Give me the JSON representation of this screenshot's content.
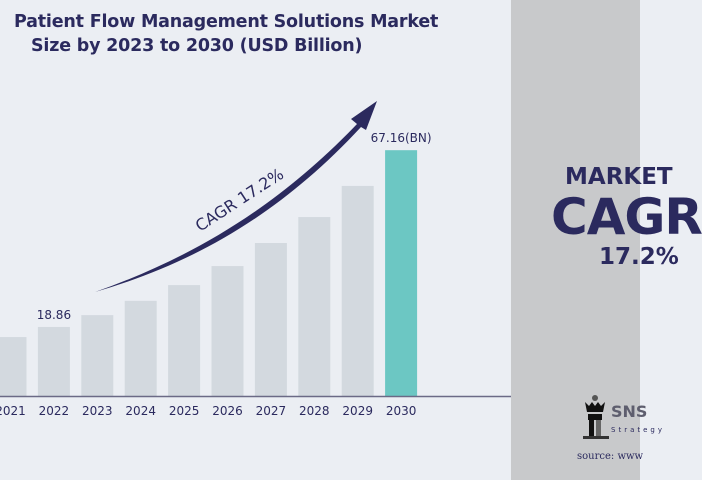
{
  "chart_data": {
    "type": "bar",
    "title_line1": "Patient Flow Management Solutions Market",
    "title_line2": "Size by 2023 to 2030 (USD Billion)",
    "categories": [
      "2021",
      "2022",
      "2023",
      "2024",
      "2025",
      "2026",
      "2027",
      "2028",
      "2029",
      "2030"
    ],
    "values": [
      16.1,
      18.86,
      22.1,
      26.0,
      30.3,
      35.5,
      41.8,
      48.9,
      57.4,
      67.16
    ],
    "data_labels": {
      "2022": "18.86",
      "2030": "67.16(BN)"
    },
    "annotation": "CAGR 17.2%",
    "bar_color": "#d3d9df",
    "highlight_color": "#6cc7c3",
    "arrow_color": "#2b2a5e",
    "xlabel": "",
    "ylabel": "",
    "grid": false
  },
  "side_panel": {
    "line1": "MARKET",
    "line2": "CAGR",
    "line3": "17.2%",
    "brand": "SNS",
    "brand_sub": "Strategy",
    "source": "source: www"
  }
}
